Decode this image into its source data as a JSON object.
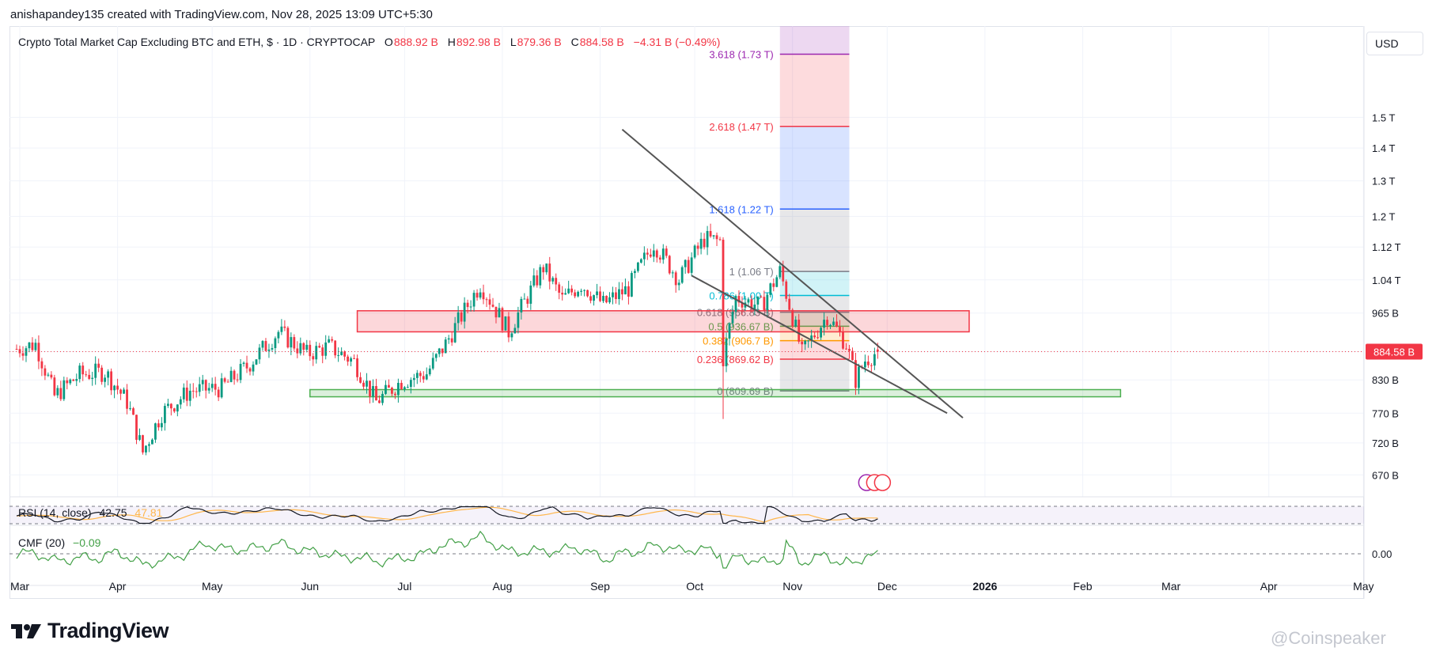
{
  "attribution": "anishapandey135 created with TradingView.com, Nov 28, 2025 13:09 UTC+5:30",
  "legend": {
    "symbol": "Crypto Total Market Cap Excluding BTC and ETH, $ · 1D · CRYPTOCAP",
    "open_label": "O",
    "open": "888.92 B",
    "high_label": "H",
    "high": "892.98 B",
    "low_label": "L",
    "low": "879.36 B",
    "close_label": "C",
    "close": "884.58 B",
    "change": "−4.31 B (−0.49%)"
  },
  "currency": "USD",
  "price_badge": "884.58 B",
  "rsi_label": "RSI (14, close)",
  "rsi_value": "42.75",
  "rsi_ma_value": "47.81",
  "cmf_label": "CMF (20)",
  "cmf_value": "−0.09",
  "cmf_axis": "0.00",
  "brand": "TradingView",
  "watermark": "@Coinspeaker",
  "colors": {
    "up": "#089981",
    "down": "#f23645",
    "fib_top": "#9c27b0",
    "fib_2618": "#f23645",
    "fib_1618": "#2962ff",
    "fib_1": "#787b86",
    "fib_0786": "#00bcd4",
    "fib_0618": "#787b86",
    "fib_05": "#4caf50",
    "fib_0382": "#ff9800",
    "fib_0236": "#f23645",
    "fib_0": "#787b86",
    "resistance_zone": "#f23645",
    "support_zone": "#4caf50",
    "rsi": "#131722",
    "rsi_ma": "#ffb74d",
    "cmf": "#43a047",
    "trendline": "#555555"
  },
  "chart_data": {
    "type": "candlestick",
    "timeframe": "1D",
    "scale": "log",
    "grid": true,
    "y_ticks": [
      "1.5 T",
      "1.4 T",
      "1.3 T",
      "1.2 T",
      "1.12 T",
      "1.04 T",
      "965 B",
      "884.58 B",
      "830 B",
      "770 B",
      "720 B",
      "670 B"
    ],
    "y_tick_values": [
      1500,
      1400,
      1300,
      1200,
      1120,
      1040,
      965,
      884.58,
      830,
      770,
      720,
      670
    ],
    "x_ticks": [
      "Mar",
      "Apr",
      "May",
      "Jun",
      "Jul",
      "Aug",
      "Sep",
      "Oct",
      "Nov",
      "Dec",
      "2026",
      "Feb",
      "Mar",
      "Apr",
      "May"
    ],
    "x_tick_dates": [
      "2025-03-01",
      "2025-04-01",
      "2025-05-01",
      "2025-06-01",
      "2025-07-01",
      "2025-08-01",
      "2025-09-01",
      "2025-10-01",
      "2025-11-01",
      "2025-12-01",
      "2026-01-01",
      "2026-02-01",
      "2026-03-01",
      "2026-04-01",
      "2026-05-01"
    ],
    "price_path": [
      [
        "2025-02-28",
        890
      ],
      [
        "2025-03-06",
        900
      ],
      [
        "2025-03-12",
        800
      ],
      [
        "2025-03-20",
        840
      ],
      [
        "2025-03-28",
        845
      ],
      [
        "2025-04-04",
        790
      ],
      [
        "2025-04-09",
        705
      ],
      [
        "2025-04-15",
        770
      ],
      [
        "2025-04-24",
        810
      ],
      [
        "2025-05-04",
        815
      ],
      [
        "2025-05-12",
        855
      ],
      [
        "2025-05-22",
        925
      ],
      [
        "2025-05-31",
        880
      ],
      [
        "2025-06-07",
        895
      ],
      [
        "2025-06-15",
        865
      ],
      [
        "2025-06-22",
        790
      ],
      [
        "2025-06-30",
        828
      ],
      [
        "2025-07-08",
        842
      ],
      [
        "2025-07-14",
        900
      ],
      [
        "2025-07-20",
        970
      ],
      [
        "2025-07-25",
        1030
      ],
      [
        "2025-08-03",
        925
      ],
      [
        "2025-08-10",
        1015
      ],
      [
        "2025-08-14",
        1070
      ],
      [
        "2025-08-20",
        995
      ],
      [
        "2025-08-26",
        1030
      ],
      [
        "2025-09-02",
        985
      ],
      [
        "2025-09-10",
        1020
      ],
      [
        "2025-09-18",
        1130
      ],
      [
        "2025-09-26",
        1040
      ],
      [
        "2025-10-04",
        1140
      ],
      [
        "2025-10-09",
        1135
      ],
      [
        "2025-10-10",
        870
      ],
      [
        "2025-10-14",
        1000
      ],
      [
        "2025-10-22",
        980
      ],
      [
        "2025-10-28",
        1060
      ],
      [
        "2025-11-04",
        880
      ],
      [
        "2025-11-12",
        960
      ],
      [
        "2025-11-18",
        900
      ],
      [
        "2025-11-21",
        830
      ],
      [
        "2025-11-24",
        868
      ],
      [
        "2025-11-28",
        884.58
      ]
    ],
    "fibonacci": [
      {
        "level": "3.618",
        "price": "1.73 T",
        "value": 1730
      },
      {
        "level": "2.618",
        "price": "1.47 T",
        "value": 1470
      },
      {
        "level": "1.618",
        "price": "1.22 T",
        "value": 1220
      },
      {
        "level": "1",
        "price": "1.06 T",
        "value": 1060
      },
      {
        "level": "0.786",
        "price": "1.00 T",
        "value": 1004
      },
      {
        "level": "0.618",
        "price": "966.83 B",
        "value": 966.83
      },
      {
        "level": "0.5",
        "price": "936.67 B",
        "value": 936.67
      },
      {
        "level": "0.382",
        "price": "906.7 B",
        "value": 906.7
      },
      {
        "level": "0.236",
        "price": "869.62 B",
        "value": 869.62
      },
      {
        "level": "0",
        "price": "809.69 B",
        "value": 809.69
      }
    ],
    "zones": [
      {
        "name": "resistance",
        "from": "2025-06-16",
        "to": "2025-12-27",
        "low": 925,
        "high": 970
      },
      {
        "name": "support",
        "from": "2025-06-01",
        "to": "2026-02-13",
        "low": 799,
        "high": 812
      }
    ],
    "trendlines": [
      {
        "from": [
          "2025-09-08",
          1460
        ],
        "to": [
          "2025-12-25",
          762
        ]
      },
      {
        "from": [
          "2025-09-30",
          1050
        ],
        "to": [
          "2025-12-20",
          770
        ]
      }
    ],
    "rsi": {
      "length": 14,
      "value": 42.75,
      "ma": 47.81
    },
    "cmf": {
      "length": 20,
      "value": -0.09
    }
  }
}
